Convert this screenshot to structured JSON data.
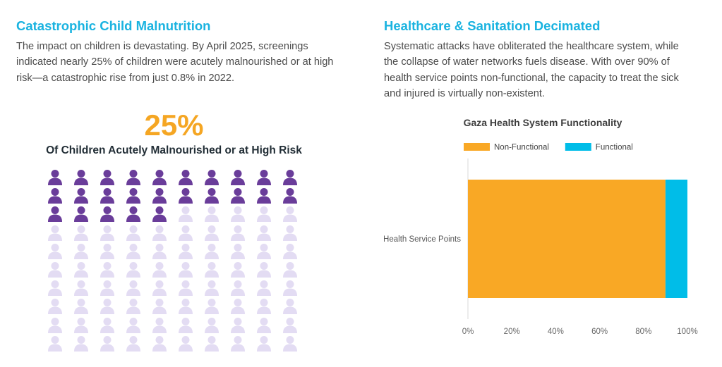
{
  "left": {
    "heading": "Catastrophic Child Malnutrition",
    "paragraph": "The impact on children is devastating. By April 2025, screenings indicated nearly 25% of children were acutely malnourished or at high risk—a catastrophic rise from just 0.8% in 2022.",
    "stat_value": "25%",
    "stat_caption": "Of Children Acutely Malnourished or at High Risk",
    "pictogram": {
      "rows": 10,
      "columns": 10,
      "filled": 25,
      "filled_color": "#6a3d9a",
      "empty_color": "#e3dcf3",
      "icon": "person-icon"
    }
  },
  "right": {
    "heading": "Healthcare & Sanitation Decimated",
    "paragraph": "Systematic attacks have obliterated the healthcare system, while the collapse of water networks fuels disease. With over 90% of health service points non-functional, the capacity to treat the sick and injured is virtually non-existent."
  },
  "chart_data": {
    "type": "bar",
    "orientation": "horizontal",
    "stacked": true,
    "title": "Gaza Health System Functionality",
    "categories": [
      "Health Service Points"
    ],
    "series": [
      {
        "name": "Non-Functional",
        "values": [
          90
        ],
        "color": "#f9a825"
      },
      {
        "name": "Functional",
        "values": [
          10
        ],
        "color": "#00bde8"
      }
    ],
    "xlim": [
      0,
      100
    ],
    "x_ticks": [
      "0%",
      "20%",
      "40%",
      "60%",
      "80%",
      "100%"
    ],
    "legend": "top",
    "grid": false
  }
}
